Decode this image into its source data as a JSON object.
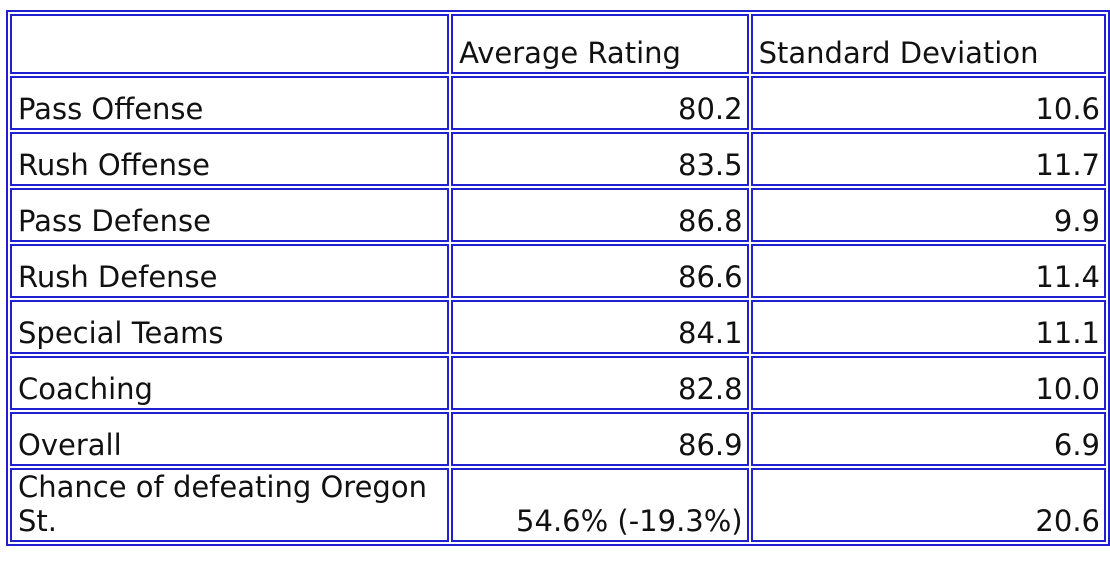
{
  "table": {
    "columns": [
      "Average Rating",
      "Standard Deviation"
    ],
    "rows": [
      [
        "Pass Offense",
        "80.2",
        "10.6"
      ],
      [
        "Rush Offense",
        "83.5",
        "11.7"
      ],
      [
        "Pass Defense",
        "86.8",
        "9.9"
      ],
      [
        "Rush Defense",
        "86.6",
        "11.4"
      ],
      [
        "Special Teams",
        "84.1",
        "11.1"
      ],
      [
        "Coaching",
        "82.8",
        "10.0"
      ],
      [
        "Overall",
        "86.9",
        "6.9"
      ],
      [
        "Chance of defeating Oregon St.",
        "54.6% (-19.3%)",
        "20.6"
      ]
    ]
  }
}
